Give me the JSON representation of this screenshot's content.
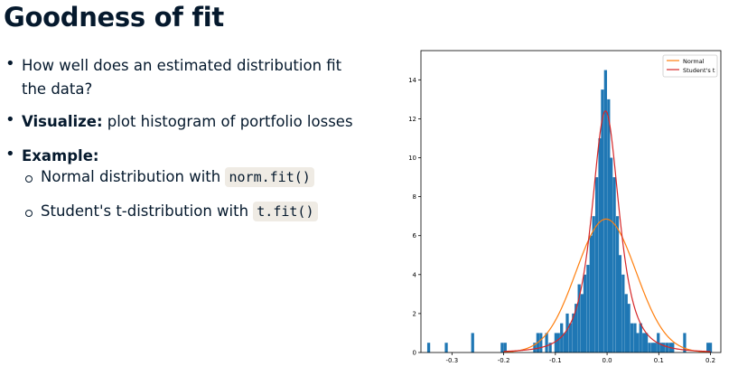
{
  "slide": {
    "title": "Goodness of fit",
    "bullets": {
      "b1_line1": "How well does an estimated distribution fit",
      "b1_line2": "the data?",
      "b2_bold": "Visualize:",
      "b2_rest": " plot histogram of portfolio losses",
      "b3_bold": "Example:",
      "sub1_text": "Normal distribution with ",
      "sub1_code": "norm.fit()",
      "sub2_text": "Student's t-distribution with ",
      "sub2_code": "t.fit()"
    }
  },
  "colors": {
    "hist": "#1f77b4",
    "normal": "#ff7f0e",
    "student": "#d62728"
  },
  "chart_data": {
    "type": "bar",
    "title": "",
    "xlabel": "",
    "ylabel": "",
    "xlim": [
      -0.36,
      0.22
    ],
    "ylim": [
      0,
      15.5
    ],
    "xticks": [
      -0.3,
      -0.2,
      -0.1,
      0.0,
      0.1,
      0.2
    ],
    "xtick_labels": [
      "-0.3",
      "-0.2",
      "-0.1",
      "0.0",
      "0.1",
      "0.2"
    ],
    "yticks": [
      0,
      2,
      4,
      6,
      8,
      10,
      12,
      14
    ],
    "ytick_labels": [
      "0",
      "2",
      "4",
      "6",
      "8",
      "10",
      "12",
      "14"
    ],
    "legend": {
      "placement": "top-right",
      "entries": [
        "Normal",
        "Student's t"
      ]
    },
    "histogram": {
      "bin_width": 0.0057,
      "bins": [
        [
          -0.345,
          0.5
        ],
        [
          -0.311,
          0.5
        ],
        [
          -0.26,
          1.0
        ],
        [
          -0.203,
          0.5
        ],
        [
          -0.197,
          0.5
        ],
        [
          -0.14,
          0.5
        ],
        [
          -0.134,
          1.0
        ],
        [
          -0.128,
          1.0
        ],
        [
          -0.117,
          1.0
        ],
        [
          -0.11,
          0.5
        ],
        [
          -0.099,
          1.0
        ],
        [
          -0.094,
          1.0
        ],
        [
          -0.088,
          1.5
        ],
        [
          -0.082,
          1.0
        ],
        [
          -0.077,
          2.0
        ],
        [
          -0.071,
          1.5
        ],
        [
          -0.065,
          2.0
        ],
        [
          -0.06,
          2.5
        ],
        [
          -0.054,
          3.5
        ],
        [
          -0.048,
          3.0
        ],
        [
          -0.043,
          4.0
        ],
        [
          -0.037,
          4.5
        ],
        [
          -0.031,
          6.0
        ],
        [
          -0.026,
          7.0
        ],
        [
          -0.02,
          9.0
        ],
        [
          -0.014,
          11.0
        ],
        [
          -0.009,
          13.5
        ],
        [
          -0.003,
          14.5
        ],
        [
          0.003,
          13.0
        ],
        [
          0.008,
          10.0
        ],
        [
          0.014,
          9.0
        ],
        [
          0.02,
          7.0
        ],
        [
          0.025,
          5.0
        ],
        [
          0.031,
          4.0
        ],
        [
          0.037,
          3.0
        ],
        [
          0.042,
          2.5
        ],
        [
          0.048,
          1.5
        ],
        [
          0.054,
          1.5
        ],
        [
          0.059,
          1.0
        ],
        [
          0.065,
          1.5
        ],
        [
          0.071,
          1.0
        ],
        [
          0.076,
          1.0
        ],
        [
          0.082,
          0.5
        ],
        [
          0.088,
          0.5
        ],
        [
          0.093,
          0.5
        ],
        [
          0.099,
          1.0
        ],
        [
          0.105,
          0.5
        ],
        [
          0.11,
          0.5
        ],
        [
          0.116,
          0.5
        ],
        [
          0.122,
          0.5
        ],
        [
          0.127,
          0.5
        ],
        [
          0.15,
          1.0
        ],
        [
          0.195,
          0.5
        ],
        [
          0.2,
          0.5
        ]
      ]
    },
    "series": [
      {
        "name": "Normal",
        "type": "pdf",
        "mean": -0.002,
        "sd": 0.058,
        "peak": 6.85
      },
      {
        "name": "Student's t",
        "type": "pdf",
        "loc": -0.003,
        "scale": 0.028,
        "df": 2.6,
        "peak": 12.4
      }
    ]
  }
}
